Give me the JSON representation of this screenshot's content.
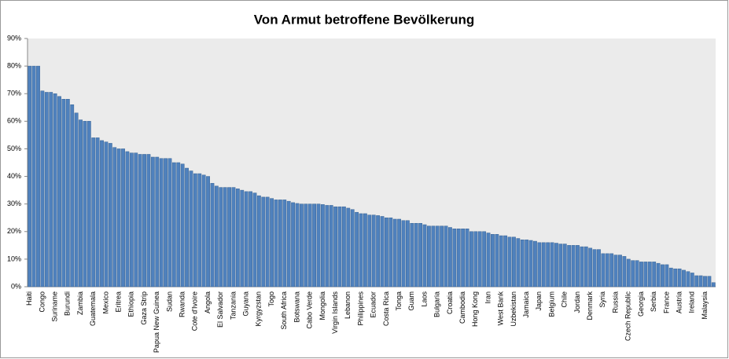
{
  "chart_data": {
    "type": "bar",
    "title": "Von Armut betroffene Bevölkerung",
    "categories": [
      "Haiti",
      null,
      null,
      "Congo",
      null,
      null,
      "Suriname",
      null,
      null,
      "Burundi",
      null,
      null,
      "Zambia",
      null,
      null,
      "Guatemala",
      null,
      null,
      "Mexico",
      null,
      null,
      "Eritrea",
      null,
      null,
      "Ethiopia",
      null,
      null,
      "Gaza Strip",
      null,
      null,
      "Papua New Guinea",
      null,
      null,
      "Sudan",
      null,
      null,
      "Rwanda",
      null,
      null,
      "Cote d'Ivoire",
      null,
      null,
      "Angola",
      null,
      null,
      "El Salvador",
      null,
      null,
      "Tanzania",
      null,
      null,
      "Guyana",
      null,
      null,
      "Kyrgyzstan",
      null,
      null,
      "Togo",
      null,
      null,
      "South Africa",
      null,
      null,
      "Botswana",
      null,
      null,
      "Cabo Verde",
      null,
      null,
      "Mongolia",
      null,
      null,
      "Virgin Islands",
      null,
      null,
      "Lebanon",
      null,
      null,
      "Philippines",
      null,
      null,
      "Ecuador",
      null,
      null,
      "Costa Rica",
      null,
      null,
      "Tonga",
      null,
      null,
      "Guam",
      null,
      null,
      "Laos",
      null,
      null,
      "Bulgaria",
      null,
      null,
      "Croatia",
      null,
      null,
      "Cambodia",
      null,
      null,
      "Hong Kong",
      null,
      null,
      "Iran",
      null,
      null,
      "West Bank",
      null,
      null,
      "Uzbekistan",
      null,
      null,
      "Jamaica",
      null,
      null,
      "Japan",
      null,
      null,
      "Belgium",
      null,
      null,
      "Chile",
      null,
      null,
      "Jordan",
      null,
      null,
      "Denmark",
      null,
      null,
      "Syria",
      null,
      null,
      "Russia",
      null,
      null,
      "Czech Republic",
      null,
      null,
      "Georgia",
      null,
      null,
      "Serbia",
      null,
      null,
      "France",
      null,
      null,
      "Austria",
      null,
      null,
      "Ireland",
      null,
      null,
      "Malaysia",
      null,
      null
    ],
    "values": [
      80,
      80,
      80,
      71,
      70.5,
      70.5,
      70,
      69,
      68,
      68,
      66,
      63,
      60.5,
      60,
      60,
      54,
      54,
      53,
      52.5,
      52,
      50.5,
      50,
      50,
      49,
      48.5,
      48.5,
      48,
      48,
      48,
      47,
      47,
      46.5,
      46.5,
      46.5,
      45,
      45,
      44.5,
      43,
      42,
      41,
      41,
      40.5,
      40,
      37.5,
      36.5,
      36,
      36,
      36,
      36,
      35.5,
      35,
      34.5,
      34.5,
      34,
      33,
      32.5,
      32.5,
      32,
      31.5,
      31.5,
      31.5,
      31,
      30.5,
      30.2,
      30,
      30,
      30,
      30,
      30,
      29.8,
      29.5,
      29.5,
      29,
      29,
      29,
      28.5,
      28,
      27,
      26.5,
      26.5,
      26,
      26,
      25.8,
      25.5,
      25,
      25,
      24.5,
      24.5,
      24,
      24,
      23,
      23,
      23,
      22.5,
      22,
      22,
      22,
      22,
      22,
      21.5,
      21,
      21,
      21,
      21,
      20,
      20,
      20,
      20,
      19.5,
      19,
      19,
      18.5,
      18.5,
      18,
      18,
      17.5,
      17,
      17,
      16.8,
      16.5,
      16,
      16,
      16,
      16,
      15.8,
      15.5,
      15.5,
      15,
      15,
      15,
      14.5,
      14.5,
      14,
      13.5,
      13.5,
      12,
      12,
      12,
      11.5,
      11.5,
      11,
      10,
      9.5,
      9.5,
      9,
      9,
      9,
      9,
      8.5,
      8,
      8,
      6.8,
      6.5,
      6.5,
      6,
      5.5,
      5,
      4,
      4,
      3.8,
      3.8,
      1.5
    ],
    "color": "#4f81bd",
    "ylim": [
      0,
      90
    ],
    "yticks": [
      {
        "value": 0,
        "label": "0%"
      },
      {
        "value": 10,
        "label": "10%"
      },
      {
        "value": 20,
        "label": "20%"
      },
      {
        "value": 30,
        "label": "30%"
      },
      {
        "value": 40,
        "label": "40%"
      },
      {
        "value": 50,
        "label": "50%"
      },
      {
        "value": 60,
        "label": "60%"
      },
      {
        "value": 70,
        "label": "70%"
      },
      {
        "value": 80,
        "label": "80%"
      },
      {
        "value": 90,
        "label": "90%"
      }
    ],
    "grid": false
  }
}
